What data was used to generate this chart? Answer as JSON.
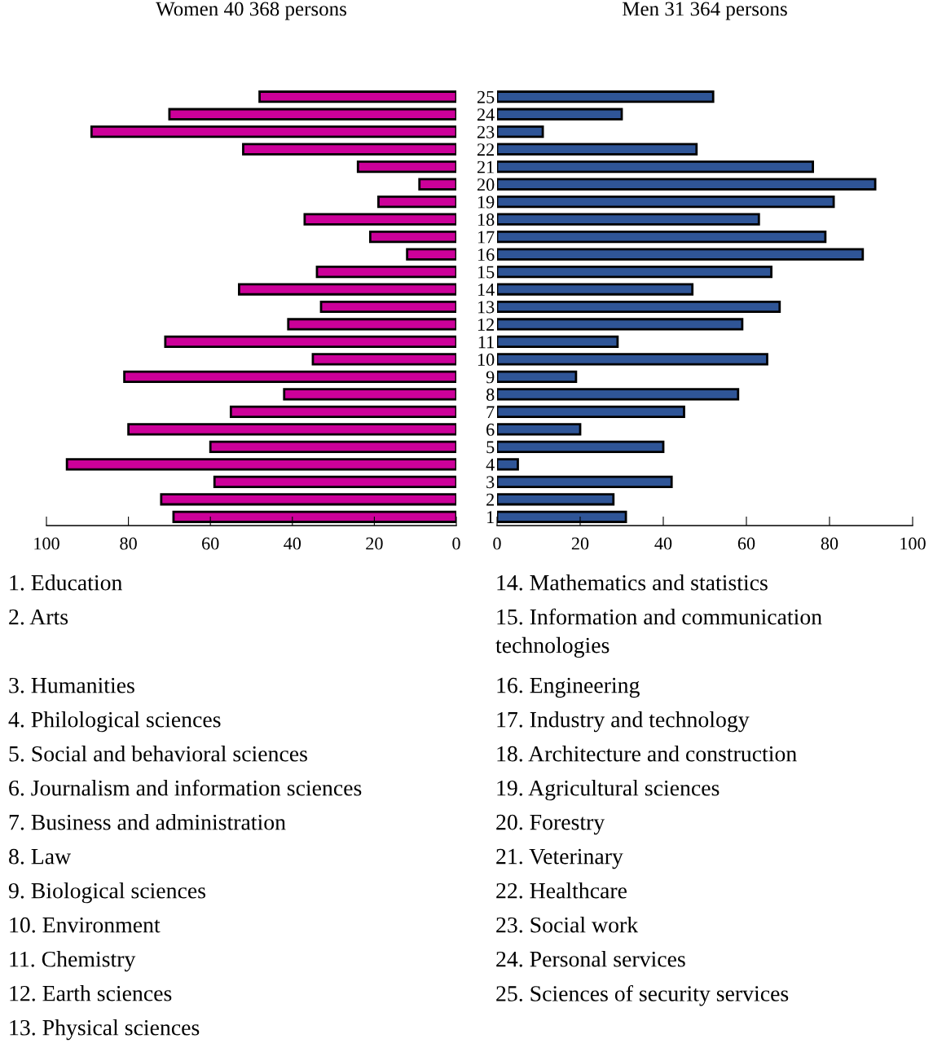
{
  "chart_data": [
    {
      "type": "bar",
      "orientation": "horizontal",
      "title": "Women 40 368 persons",
      "categories": [
        "25",
        "24",
        "23",
        "22",
        "21",
        "20",
        "19",
        "18",
        "17",
        "16",
        "15",
        "14",
        "13",
        "12",
        "11",
        "10",
        "9",
        "8",
        "7",
        "6",
        "5",
        "4",
        "3",
        "2",
        "1"
      ],
      "values": [
        48,
        70,
        89,
        52,
        24,
        9,
        19,
        37,
        21,
        12,
        34,
        53,
        33,
        41,
        71,
        35,
        81,
        42,
        55,
        80,
        60,
        95,
        59,
        72,
        69
      ],
      "color": "#cc0099",
      "xlim": [
        100,
        0
      ],
      "xticks": [
        100,
        80,
        60,
        40,
        20,
        0
      ],
      "tick_labels": "x",
      "annotations": [
        "1. Education",
        "2. Arts",
        "3. Humanities",
        "4. Philological sciences",
        "5. Social and behavioral sciences",
        "6. Journalism and information sciences",
        "7. Business and administration",
        "8. Law",
        "9. Biological sciences",
        "10. Environment",
        "11. Chemistry",
        "12. Earth sciences",
        "13. Physical sciences"
      ]
    },
    {
      "type": "bar",
      "orientation": "horizontal",
      "title": "Men 31 364 persons",
      "categories": [
        "25",
        "24",
        "23",
        "22",
        "21",
        "20",
        "19",
        "18",
        "17",
        "16",
        "15",
        "14",
        "13",
        "12",
        "11",
        "10",
        "9",
        "8",
        "7",
        "6",
        "5",
        "4",
        "3",
        "2",
        "1"
      ],
      "values": [
        52,
        30,
        11,
        48,
        76,
        91,
        81,
        63,
        79,
        88,
        66,
        47,
        68,
        59,
        29,
        65,
        19,
        58,
        45,
        20,
        40,
        5,
        42,
        28,
        31
      ],
      "color": "#2f5597",
      "xlim": [
        0,
        100
      ],
      "xticks": [
        0,
        20,
        40,
        60,
        80,
        100
      ],
      "annotations": [
        "14. Mathematics and statistics",
        "15. Information and communication technologies",
        "16. Engineering",
        "17. Industry and technology",
        "18. Architecture and construction",
        "19. Agricultural sciences",
        "20. Forestry",
        "21. Veterinary",
        "22. Healthcare",
        "23. Social work",
        "24. Personal services",
        "25. Sciences of security services"
      ]
    }
  ]
}
